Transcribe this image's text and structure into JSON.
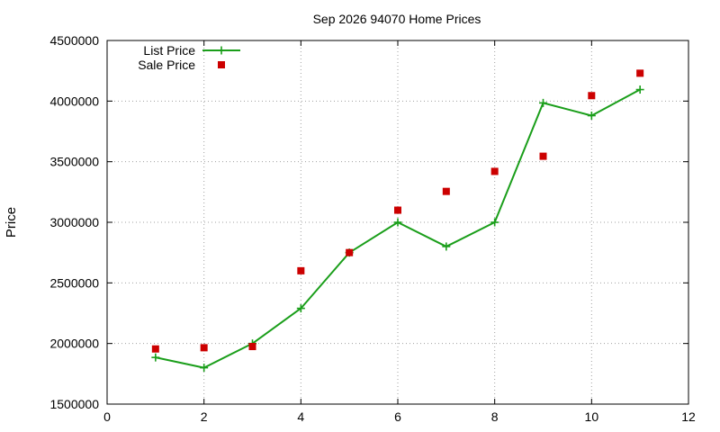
{
  "chart_data": {
    "type": "line",
    "title": "Sep 2026 94070 Home Prices",
    "xlabel": "",
    "ylabel": "Price",
    "xlim": [
      0,
      12
    ],
    "ylim": [
      1500000,
      4500000
    ],
    "x_ticks": [
      "0",
      "2",
      "4",
      "6",
      "8",
      "10",
      "12"
    ],
    "y_ticks": [
      "1500000",
      "2000000",
      "2500000",
      "3000000",
      "3500000",
      "4000000",
      "4500000"
    ],
    "grid": true,
    "legend_position": "top-left",
    "series": [
      {
        "name": "List Price",
        "style": "line-with-plus-markers",
        "color": "#1a9e1a",
        "x": [
          1,
          2,
          3,
          4,
          5,
          6,
          7,
          8,
          9,
          10,
          11
        ],
        "y": [
          1885000,
          1800000,
          2000000,
          2290000,
          2750000,
          3000000,
          2800000,
          3000000,
          3985000,
          3880000,
          4095000
        ]
      },
      {
        "name": "Sale Price",
        "style": "square-markers",
        "color": "#cc0000",
        "x": [
          1,
          2,
          3,
          4,
          5,
          6,
          7,
          8,
          9,
          10,
          11
        ],
        "y": [
          1955000,
          1965000,
          1975000,
          2600000,
          2750000,
          3100000,
          3255000,
          3420000,
          3545000,
          4045000,
          4230000
        ]
      }
    ]
  }
}
